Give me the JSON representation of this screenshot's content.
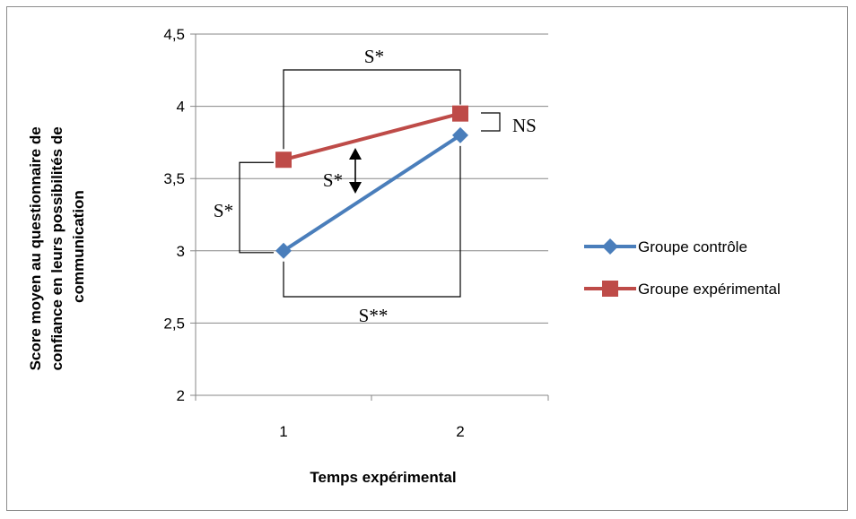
{
  "chart_data": {
    "type": "line",
    "x": [
      1,
      2
    ],
    "xlabel": "Temps expérimental",
    "ylabel_lines": [
      "Score moyen au questionnaire de",
      "confiance en leurs possibilités de",
      "communication"
    ],
    "ylim": [
      2,
      4.5
    ],
    "yticks": [
      2,
      2.5,
      3,
      3.5,
      4,
      4.5
    ],
    "ytick_labels": [
      "2",
      "2,5",
      "3",
      "3,5",
      "4",
      "4,5"
    ],
    "xtick_labels": [
      "1",
      "2"
    ],
    "grid": "horizontal",
    "legend_position": "right",
    "series": [
      {
        "name": "Groupe contrôle",
        "values": [
          3.0,
          3.8
        ],
        "color": "#4a7ebb",
        "marker": "diamond"
      },
      {
        "name": "Groupe expérimental",
        "values": [
          3.63,
          3.95
        ],
        "color": "#be4b48",
        "marker": "square"
      }
    ],
    "annotations": {
      "top_bracket": "S*",
      "bottom_bracket": "S**",
      "left_bracket": "S*",
      "arrow_between": "S*",
      "right_bracket": "NS"
    }
  }
}
